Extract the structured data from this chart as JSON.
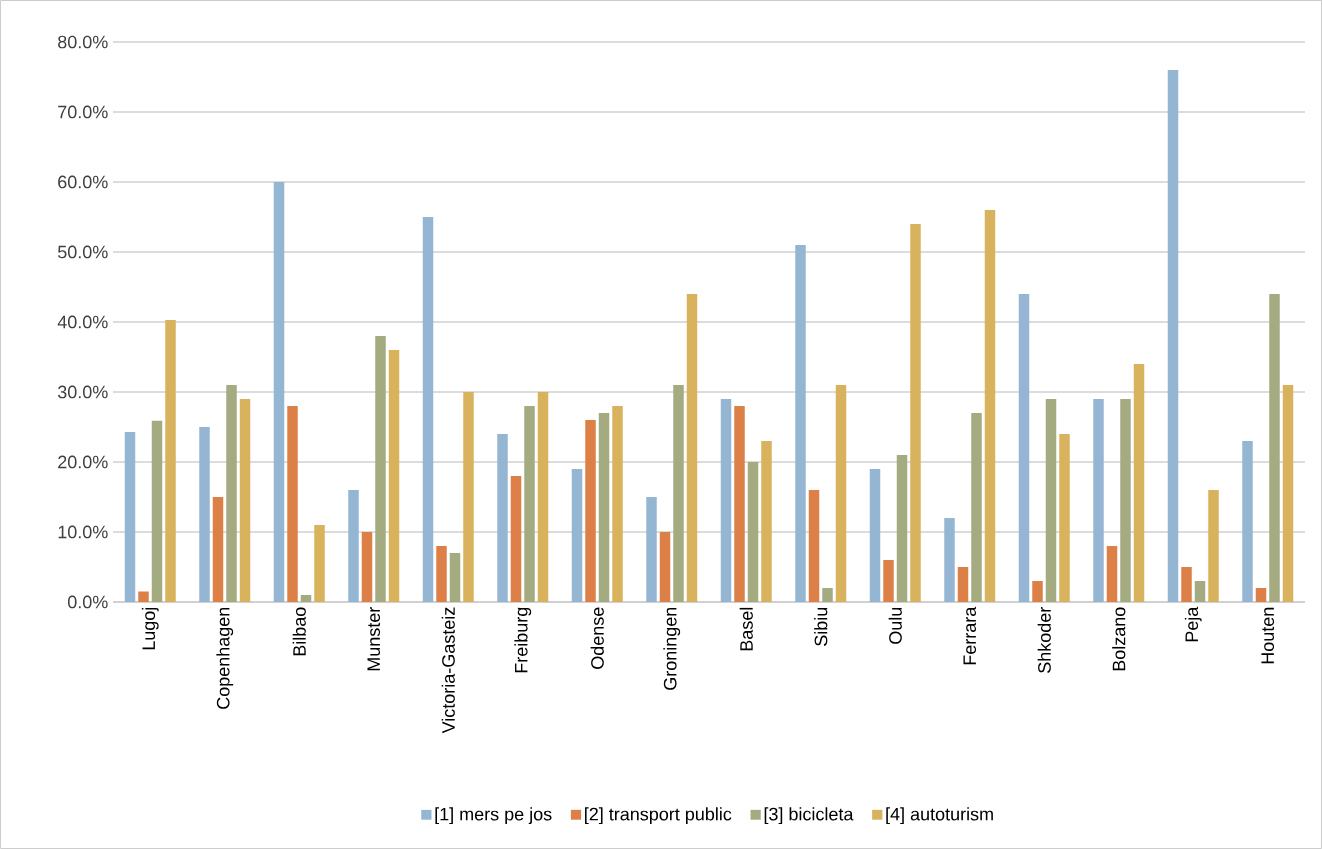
{
  "chart_data": {
    "type": "bar",
    "categories": [
      "Lugoj",
      "Copenhagen",
      "Bilbao",
      "Munster",
      "Victoria-Gasteiz",
      "Freiburg",
      "Odense",
      "Groningen",
      "Basel",
      "Sibiu",
      "Oulu",
      "Ferrara",
      "Shkoder",
      "Bolzano",
      "Peja",
      "Houten"
    ],
    "series": [
      {
        "name": "[1] mers pe jos",
        "color": "#95b6d3",
        "values": [
          24.3,
          25,
          60,
          16,
          55,
          24,
          19,
          15,
          29,
          51,
          19,
          12,
          44,
          29,
          76,
          23
        ]
      },
      {
        "name": "[2] transport public",
        "color": "#dd8047",
        "values": [
          1.5,
          15,
          28,
          10,
          8,
          18,
          26,
          10,
          28,
          16,
          6,
          5,
          3,
          8,
          5,
          2
        ]
      },
      {
        "name": "[3] bicicleta",
        "color": "#a5ab81",
        "values": [
          25.9,
          31,
          1,
          38,
          7,
          28,
          27,
          31,
          20,
          2,
          21,
          27,
          29,
          29,
          3,
          44
        ]
      },
      {
        "name": "[4] autoturism",
        "color": "#d8b25c",
        "values": [
          40.3,
          29,
          11,
          36,
          30,
          30,
          28,
          44,
          23,
          31,
          54,
          56,
          24,
          34,
          16,
          31
        ]
      }
    ],
    "ylim": [
      0,
      80
    ],
    "yticks": [
      {
        "value": 0,
        "label": "0.0%"
      },
      {
        "value": 10,
        "label": "10.0%"
      },
      {
        "value": 20,
        "label": "20.0%"
      },
      {
        "value": 30,
        "label": "30.0%"
      },
      {
        "value": 40,
        "label": "40.0%"
      },
      {
        "value": 50,
        "label": "50.0%"
      },
      {
        "value": 60,
        "label": "60.0%"
      },
      {
        "value": 70,
        "label": "70.0%"
      },
      {
        "value": 80,
        "label": "80.0%"
      }
    ],
    "grid": "y",
    "legend": "bottom"
  }
}
